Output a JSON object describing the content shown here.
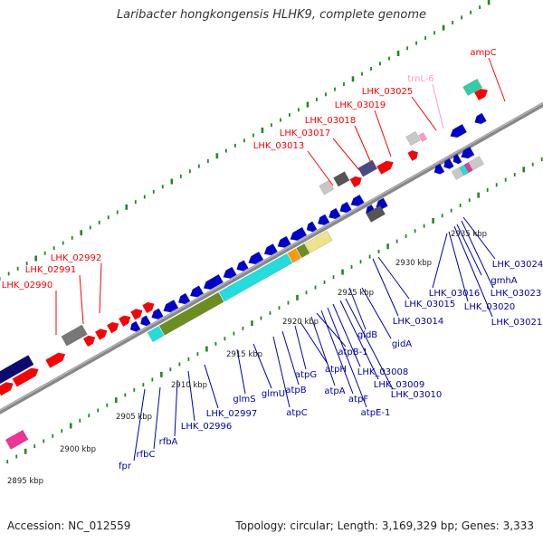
{
  "title": "Laribacter hongkongensis HLHK9, complete genome",
  "footer": {
    "accession": "Accession: NC_012559",
    "topology": "Topology: circular; Length: 3,169,329 bp; Genes: 3,333"
  },
  "colors": {
    "red": "#ff0000",
    "pink": "#ff99cc",
    "blue": "#0000cc",
    "label_blue": "#0000aa",
    "gray": "#777777",
    "light_gray": "#c8c8c8",
    "dark_gray": "#555555",
    "navy": "#0a0a70",
    "slate": "#4a4a8a",
    "cyan": "#22dddd",
    "olive": "#6b8e23",
    "khaki": "#eee28a",
    "orange": "#ff9900",
    "green_ticks": "#228822",
    "teal": "#33ccaa",
    "magenta": "#ee3399"
  },
  "scale_labels": [
    {
      "text": "2895 kbp",
      "pos": 2895
    },
    {
      "text": "2900 kbp",
      "pos": 2900
    },
    {
      "text": "2905 kbp",
      "pos": 2905
    },
    {
      "text": "2910 kbp",
      "pos": 2910
    },
    {
      "text": "2915 kbp",
      "pos": 2915
    },
    {
      "text": "2920 kbp",
      "pos": 2920
    },
    {
      "text": "2925 kbp",
      "pos": 2925
    },
    {
      "text": "2930 kbp",
      "pos": 2930
    },
    {
      "text": "2935 kbp",
      "pos": 2935
    }
  ],
  "top_labels": [
    {
      "text": "LHK_02990",
      "color": "red"
    },
    {
      "text": "LHK_02991",
      "color": "red"
    },
    {
      "text": "LHK_02992",
      "color": "red"
    },
    {
      "text": "LHK_03013",
      "color": "red"
    },
    {
      "text": "LHK_03017",
      "color": "red"
    },
    {
      "text": "LHK_03018",
      "color": "red"
    },
    {
      "text": "LHK_03019",
      "color": "red"
    },
    {
      "text": "LHK_03025",
      "color": "red"
    },
    {
      "text": "trnL-6",
      "color": "pink"
    },
    {
      "text": "ampC",
      "color": "red"
    }
  ],
  "bottom_labels": [
    {
      "text": "fpr"
    },
    {
      "text": "rfbC"
    },
    {
      "text": "rfbA"
    },
    {
      "text": "LHK_02996"
    },
    {
      "text": "LHK_02997"
    },
    {
      "text": "glmS"
    },
    {
      "text": "glmU"
    },
    {
      "text": "atpC"
    },
    {
      "text": "atpB"
    },
    {
      "text": "atpG"
    },
    {
      "text": "atpA"
    },
    {
      "text": "atpH"
    },
    {
      "text": "atpF"
    },
    {
      "text": "atpE-1"
    },
    {
      "text": "atpB-1"
    },
    {
      "text": "LHK_03008"
    },
    {
      "text": "LHK_03009"
    },
    {
      "text": "LHK_03010"
    },
    {
      "text": "gidB"
    },
    {
      "text": "gidA"
    },
    {
      "text": "LHK_03014"
    },
    {
      "text": "LHK_03015"
    },
    {
      "text": "LHK_03016"
    },
    {
      "text": "LHK_03020"
    },
    {
      "text": "LHK_03021"
    },
    {
      "text": "gmhA"
    },
    {
      "text": "LHK_03023"
    },
    {
      "text": "LHK_03024"
    }
  ]
}
